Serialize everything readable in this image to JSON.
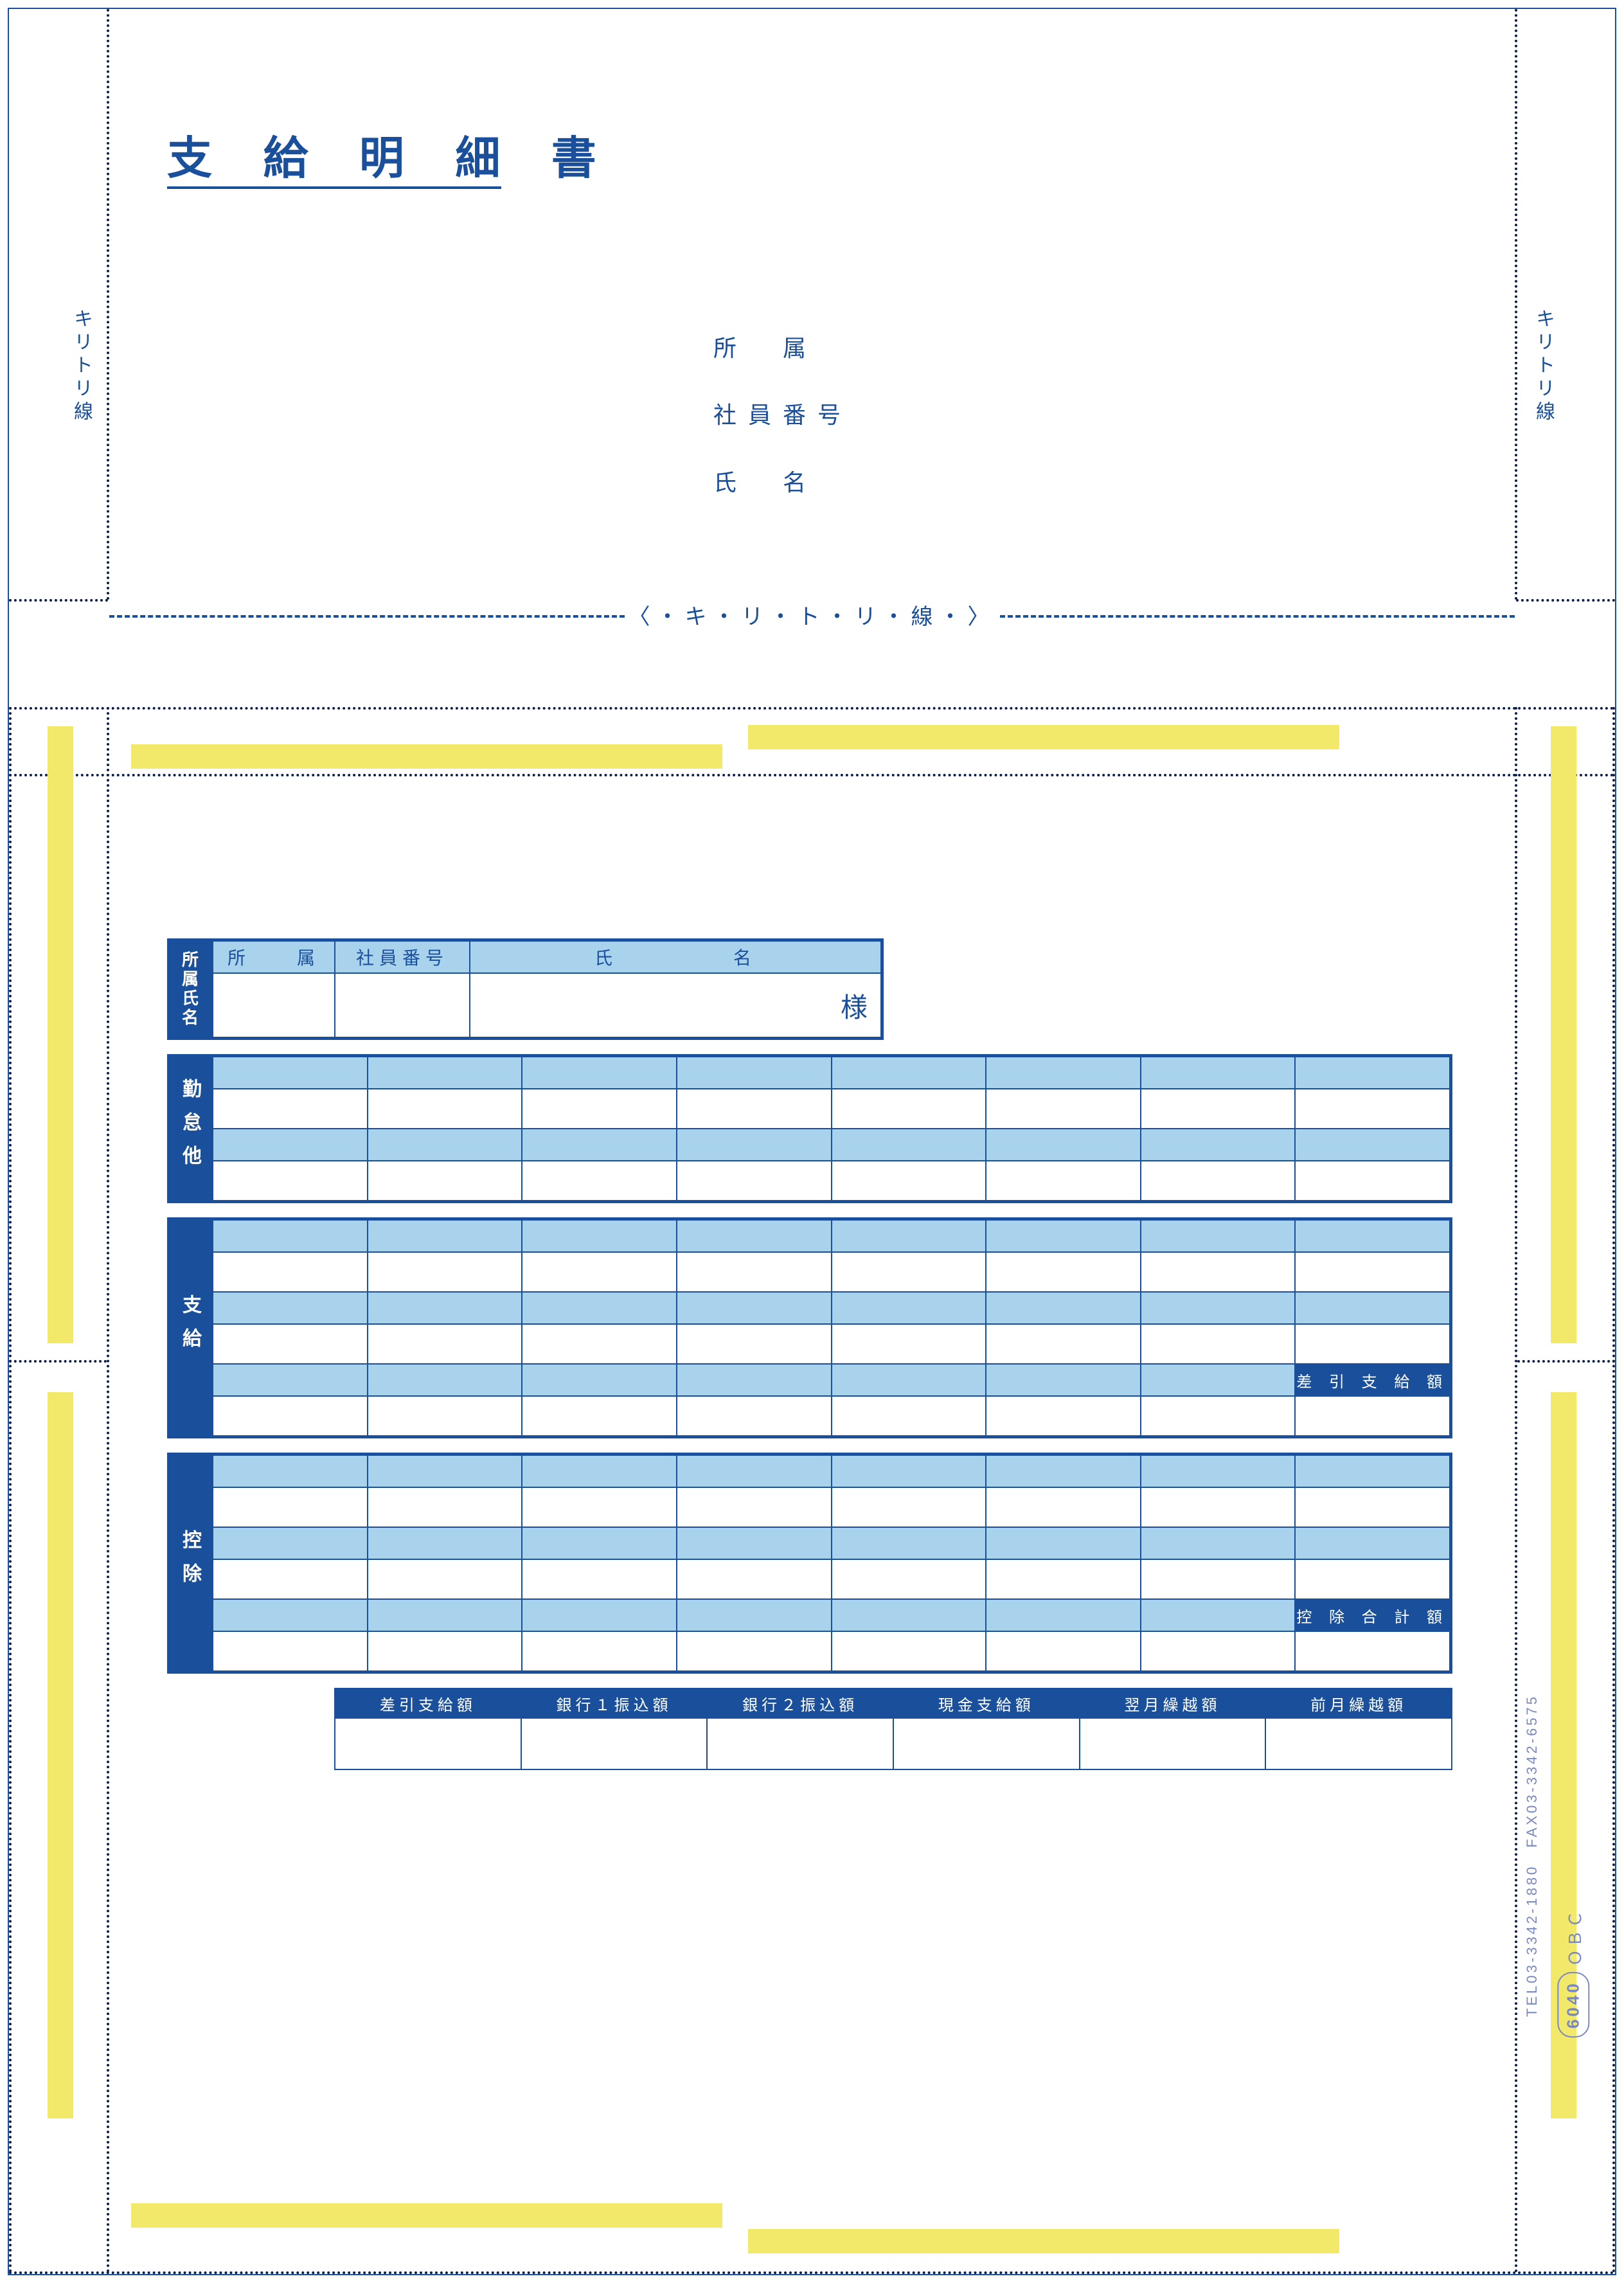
{
  "colors": {
    "brand": "#1a4f9c",
    "brand_dark": "#0b1e4a",
    "header_fill": "#a9d2ed",
    "glue": "#f2e96b",
    "imprint": "#7a88c2",
    "paper": "#ffffff"
  },
  "document": {
    "title": "支 給 明 細 書",
    "cut_line_label": "キリトリ線",
    "cut_line_inline": "〈・キ・リ・ト・リ・線・〉"
  },
  "recipient": {
    "dept_label": "所　属",
    "empno_label": "社員番号",
    "name_label": "氏　名"
  },
  "sections": {
    "id": {
      "side": "所属氏名",
      "dept": "所　　属",
      "empno": "社員番号",
      "name": "氏　　　　　名",
      "honorific": "様"
    },
    "attendance_side": "勤怠他",
    "payment_side": "支給",
    "payment_total_label": "差 引 支 給 額",
    "deduction_side": "控除",
    "deduction_total_label": "控 除 合 計 額"
  },
  "totals_row": [
    "差引支給額",
    "銀行１振込額",
    "銀行２振込額",
    "現金支給額",
    "翌月繰越額",
    "前月繰越額"
  ],
  "imprint": {
    "company": "ＯＢＣ",
    "form_code": "6040",
    "tel": "TEL03-3342-1880　FAX03-3342-6575"
  }
}
